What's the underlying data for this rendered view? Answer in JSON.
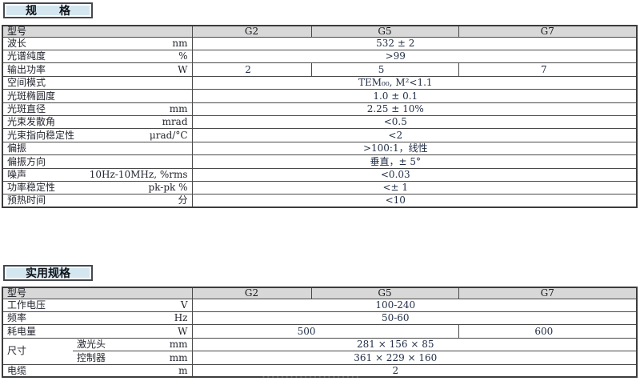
{
  "colors": {
    "title_box_bg": "#d4e7f0",
    "title_box_border": "#45494d",
    "header_row_bg": "#d8d8d8",
    "table_border": "#4a4a4a",
    "value_text": "#233047"
  },
  "watermark": "·····················",
  "tables": [
    {
      "title": "规　　格",
      "header": {
        "label": "型号",
        "columns": [
          "G2",
          "G5",
          "G7"
        ]
      },
      "rows": [
        {
          "label": "波长",
          "unit": "nm",
          "values": [
            {
              "text": "532 ± 2",
              "span": 3
            }
          ]
        },
        {
          "label": "光谱纯度",
          "unit": "%",
          "values": [
            {
              "text": ">99",
              "span": 3
            }
          ]
        },
        {
          "label": "输出功率",
          "unit": "W",
          "values": [
            {
              "text": "2",
              "span": 1
            },
            {
              "text": "5",
              "span": 1
            },
            {
              "text": "7",
              "span": 1
            }
          ]
        },
        {
          "label": "空间模式",
          "unit": "",
          "values": [
            {
              "text": "TEM₀₀, M²<1.1",
              "span": 3
            }
          ]
        },
        {
          "label": "光斑椭圆度",
          "unit": "",
          "values": [
            {
              "text": "1.0 ± 0.1",
              "span": 3
            }
          ]
        },
        {
          "label": "光斑直径",
          "unit": "mm",
          "values": [
            {
              "text": "2.25 ± 10%",
              "span": 3
            }
          ]
        },
        {
          "label": "光束发散角",
          "unit": "mrad",
          "values": [
            {
              "text": "<0.5",
              "span": 3
            }
          ]
        },
        {
          "label": "光束指向稳定性",
          "unit": "μrad/°C",
          "values": [
            {
              "text": "<2",
              "span": 3
            }
          ]
        },
        {
          "label": "偏振",
          "unit": "",
          "values": [
            {
              "text": ">100:1，线性",
              "span": 3
            }
          ]
        },
        {
          "label": "偏振方向",
          "unit": "",
          "values": [
            {
              "text": "垂直，± 5°",
              "span": 3
            }
          ]
        },
        {
          "label": "噪声",
          "unit": "10Hz-10MHz, %rms",
          "values": [
            {
              "text": "<0.03",
              "span": 3
            }
          ]
        },
        {
          "label": "功率稳定性",
          "unit": "pk-pk %",
          "values": [
            {
              "text": "<± 1",
              "span": 3
            }
          ]
        },
        {
          "label": "预热时间",
          "unit": "分",
          "values": [
            {
              "text": "<10",
              "span": 3
            }
          ]
        }
      ]
    },
    {
      "title": "实用规格",
      "header": {
        "label": "型号",
        "columns": [
          "G2",
          "G5",
          "G7"
        ]
      },
      "rows": [
        {
          "label": "工作电压",
          "unit": "V",
          "values": [
            {
              "text": "100-240",
              "span": 3
            }
          ]
        },
        {
          "label": "频率",
          "unit": "Hz",
          "values": [
            {
              "text": "50-60",
              "span": 3
            }
          ]
        },
        {
          "label": "耗电量",
          "unit": "W",
          "values": [
            {
              "text": "500",
              "span": 2
            },
            {
              "text": "600",
              "span": 1
            }
          ]
        },
        {
          "group": "尺寸",
          "group_rowspan": 2,
          "label": "激光头",
          "unit": "mm",
          "values": [
            {
              "text": "281 × 156 × 85",
              "span": 3
            }
          ]
        },
        {
          "in_group": true,
          "label": "控制器",
          "unit": "mm",
          "values": [
            {
              "text": "361 × 229 × 160",
              "span": 3
            }
          ]
        },
        {
          "label": "电缆",
          "unit": "m",
          "values": [
            {
              "text": "2",
              "span": 3
            }
          ]
        }
      ]
    }
  ]
}
